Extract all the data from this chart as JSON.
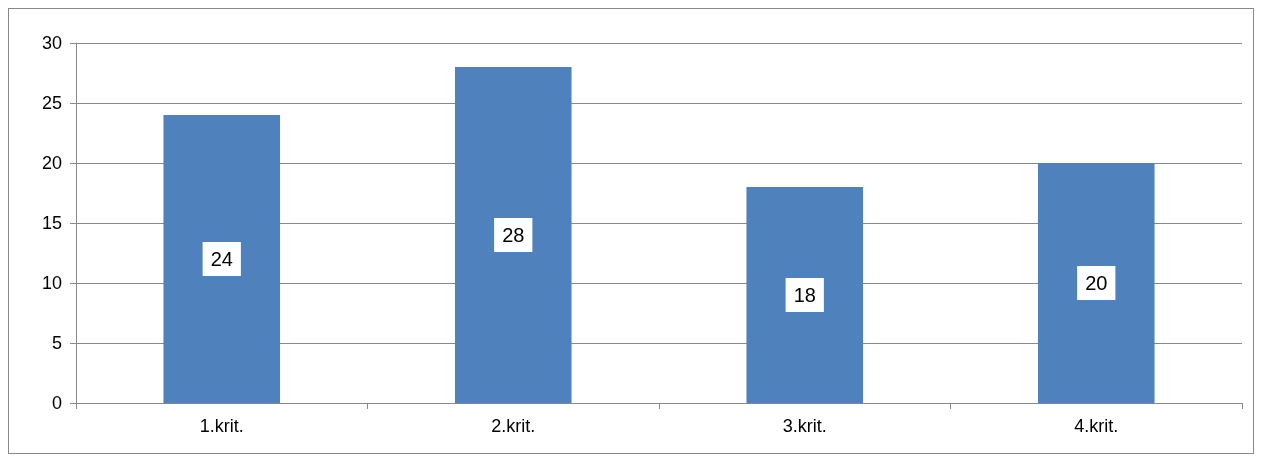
{
  "chart_data": {
    "type": "bar",
    "categories": [
      "1.krit.",
      "2.krit.",
      "3.krit.",
      "4.krit."
    ],
    "values": [
      24,
      28,
      18,
      20
    ],
    "color": "#4f81bd",
    "ylim": [
      0,
      30
    ],
    "yticks": [
      0,
      5,
      10,
      15,
      20,
      25,
      30
    ],
    "grid": "y",
    "data_labels": true
  }
}
